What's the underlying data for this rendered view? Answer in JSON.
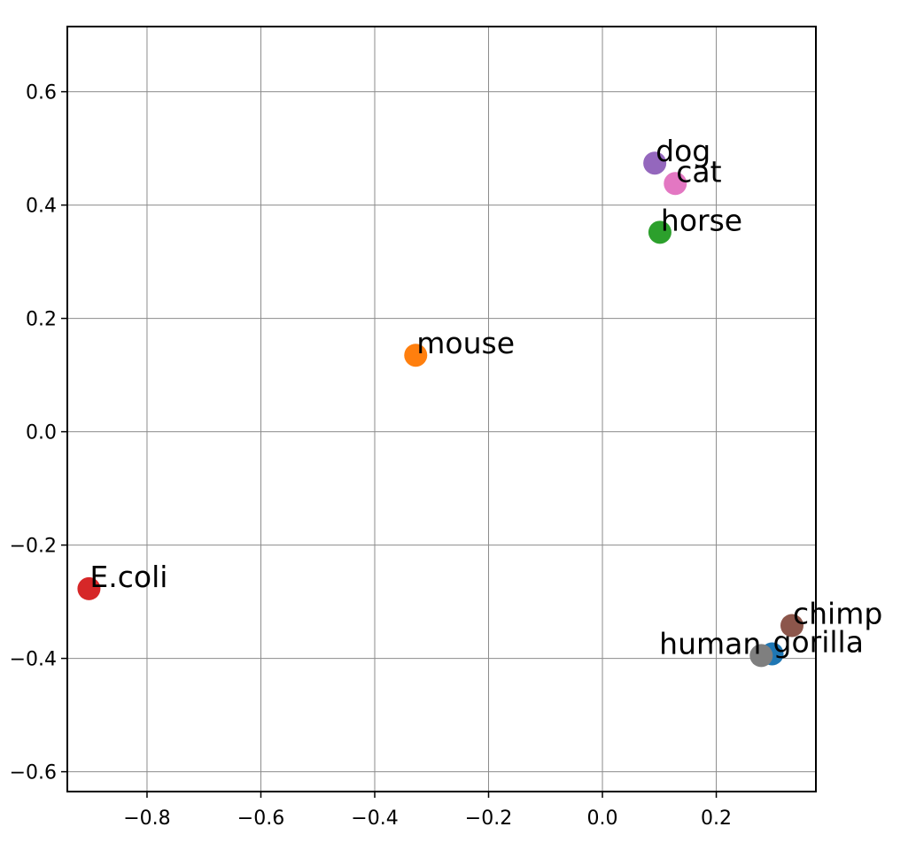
{
  "chart_data": {
    "type": "scatter",
    "title": "",
    "xlabel": "",
    "ylabel": "",
    "xlim": [
      -0.94,
      0.375
    ],
    "ylim": [
      -0.635,
      0.715
    ],
    "xticks": [
      -0.8,
      -0.6,
      -0.4,
      -0.2,
      0.0,
      0.2
    ],
    "xtick_labels": [
      "−0.8",
      "−0.6",
      "−0.4",
      "−0.2",
      "0.0",
      "0.2"
    ],
    "yticks": [
      0.6,
      0.4,
      0.2,
      0.0,
      -0.2,
      -0.4,
      -0.6
    ],
    "ytick_labels": [
      "0.6",
      "0.4",
      "0.2",
      "0.0",
      "−0.2",
      "−0.4",
      "−0.6"
    ],
    "grid": true,
    "points": [
      {
        "label": "gorilla",
        "x": 0.298,
        "y": -0.392,
        "color": "#1f77b4",
        "label_side": "right"
      },
      {
        "label": "mouse",
        "x": -0.328,
        "y": 0.135,
        "color": "#ff7f0e",
        "label_side": "right"
      },
      {
        "label": "horse",
        "x": 0.101,
        "y": 0.352,
        "color": "#2ca02c",
        "label_side": "right"
      },
      {
        "label": "E.coli",
        "x": -0.902,
        "y": -0.277,
        "color": "#d62728",
        "label_side": "right"
      },
      {
        "label": "dog",
        "x": 0.092,
        "y": 0.474,
        "color": "#9467bd",
        "label_side": "right"
      },
      {
        "label": "chimp",
        "x": 0.333,
        "y": -0.342,
        "color": "#8c564b",
        "label_side": "right"
      },
      {
        "label": "cat",
        "x": 0.128,
        "y": 0.438,
        "color": "#e377c2",
        "label_side": "right"
      },
      {
        "label": "human",
        "x": 0.279,
        "y": -0.395,
        "color": "#7f7f7f",
        "label_side": "left"
      }
    ]
  }
}
